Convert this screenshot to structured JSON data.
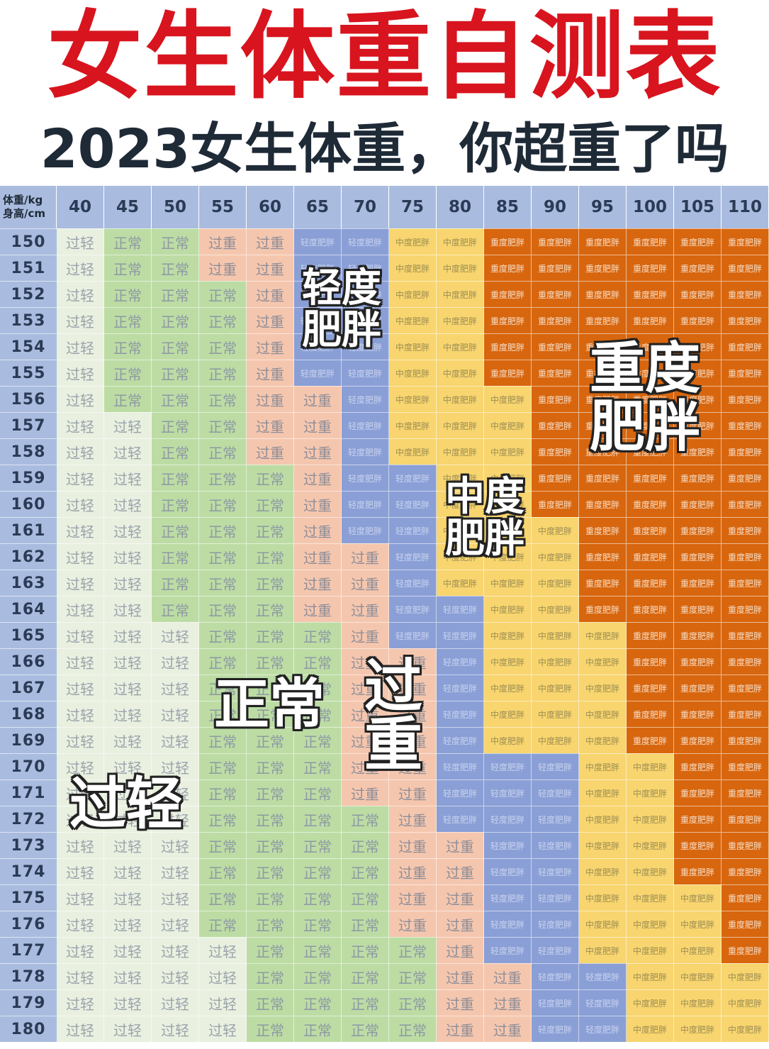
{
  "title": "女生体重自测表",
  "subtitle": "2023女生体重，你超重了吗",
  "table": {
    "corner_top": "体重/kg",
    "corner_bottom": "身高/cm",
    "weights": [
      "40",
      "45",
      "50",
      "55",
      "60",
      "65",
      "70",
      "75",
      "80",
      "85",
      "90",
      "95",
      "100",
      "105",
      "110"
    ],
    "heights": [
      "150",
      "151",
      "152",
      "153",
      "154",
      "155",
      "156",
      "157",
      "158",
      "159",
      "160",
      "161",
      "162",
      "163",
      "164",
      "165",
      "166",
      "167",
      "168",
      "169",
      "170",
      "171",
      "172",
      "173",
      "174",
      "175",
      "176",
      "177",
      "178",
      "179",
      "180"
    ],
    "categories": {
      "light": "过轻",
      "normal": "正常",
      "over": "过重",
      "mild": "轻度肥胖",
      "moderate": "中度肥胖",
      "severe": "重度肥胖"
    },
    "colors": {
      "light": "#e9f0e0",
      "normal": "#bcdca4",
      "over": "#f5c6ae",
      "mild": "#8a9fd6",
      "moderate": "#f8d56e",
      "severe": "#d8660e",
      "header": "#a9bcdf"
    },
    "grid": [
      [
        0,
        1,
        1,
        2,
        2,
        3,
        3,
        4,
        4,
        5,
        5,
        5,
        5,
        5,
        5
      ],
      [
        0,
        1,
        1,
        2,
        2,
        3,
        3,
        4,
        4,
        5,
        5,
        5,
        5,
        5,
        5
      ],
      [
        0,
        1,
        1,
        1,
        2,
        3,
        3,
        4,
        4,
        5,
        5,
        5,
        5,
        5,
        5
      ],
      [
        0,
        1,
        1,
        1,
        2,
        3,
        3,
        4,
        4,
        5,
        5,
        5,
        5,
        5,
        5
      ],
      [
        0,
        1,
        1,
        1,
        2,
        3,
        3,
        4,
        4,
        5,
        5,
        5,
        5,
        5,
        5
      ],
      [
        0,
        1,
        1,
        1,
        2,
        3,
        3,
        4,
        4,
        5,
        5,
        5,
        5,
        5,
        5
      ],
      [
        0,
        1,
        1,
        1,
        2,
        2,
        3,
        4,
        4,
        4,
        5,
        5,
        5,
        5,
        5
      ],
      [
        0,
        0,
        1,
        1,
        2,
        2,
        3,
        4,
        4,
        4,
        5,
        5,
        5,
        5,
        5
      ],
      [
        0,
        0,
        1,
        1,
        2,
        2,
        3,
        4,
        4,
        4,
        5,
        5,
        5,
        5,
        5
      ],
      [
        0,
        0,
        1,
        1,
        1,
        2,
        3,
        3,
        4,
        4,
        5,
        5,
        5,
        5,
        5
      ],
      [
        0,
        0,
        1,
        1,
        1,
        2,
        3,
        3,
        4,
        4,
        5,
        5,
        5,
        5,
        5
      ],
      [
        0,
        0,
        1,
        1,
        1,
        2,
        3,
        3,
        4,
        4,
        4,
        5,
        5,
        5,
        5
      ],
      [
        0,
        0,
        1,
        1,
        1,
        2,
        2,
        3,
        4,
        4,
        4,
        5,
        5,
        5,
        5
      ],
      [
        0,
        0,
        1,
        1,
        1,
        2,
        2,
        3,
        4,
        4,
        4,
        5,
        5,
        5,
        5
      ],
      [
        0,
        0,
        1,
        1,
        1,
        2,
        2,
        3,
        3,
        4,
        4,
        5,
        5,
        5,
        5
      ],
      [
        0,
        0,
        0,
        1,
        1,
        1,
        2,
        3,
        3,
        4,
        4,
        4,
        5,
        5,
        5
      ],
      [
        0,
        0,
        0,
        1,
        1,
        1,
        2,
        2,
        3,
        4,
        4,
        4,
        5,
        5,
        5
      ],
      [
        0,
        0,
        0,
        1,
        1,
        1,
        2,
        2,
        3,
        4,
        4,
        4,
        5,
        5,
        5
      ],
      [
        0,
        0,
        0,
        1,
        1,
        1,
        2,
        2,
        3,
        4,
        4,
        4,
        5,
        5,
        5
      ],
      [
        0,
        0,
        0,
        1,
        1,
        1,
        2,
        2,
        3,
        4,
        4,
        4,
        5,
        5,
        5
      ],
      [
        0,
        0,
        0,
        1,
        1,
        1,
        2,
        2,
        3,
        3,
        3,
        4,
        4,
        5,
        5
      ],
      [
        0,
        0,
        0,
        1,
        1,
        1,
        2,
        2,
        3,
        3,
        3,
        4,
        4,
        5,
        5
      ],
      [
        0,
        0,
        0,
        1,
        1,
        1,
        1,
        2,
        3,
        3,
        3,
        4,
        4,
        5,
        5
      ],
      [
        0,
        0,
        0,
        1,
        1,
        1,
        1,
        2,
        2,
        3,
        3,
        4,
        4,
        5,
        5
      ],
      [
        0,
        0,
        0,
        1,
        1,
        1,
        1,
        2,
        2,
        3,
        3,
        4,
        4,
        5,
        5
      ],
      [
        0,
        0,
        0,
        1,
        1,
        1,
        1,
        2,
        2,
        3,
        3,
        4,
        4,
        4,
        5
      ],
      [
        0,
        0,
        0,
        1,
        1,
        1,
        1,
        2,
        2,
        3,
        3,
        4,
        4,
        4,
        5
      ],
      [
        0,
        0,
        0,
        0,
        1,
        1,
        1,
        1,
        2,
        3,
        3,
        4,
        4,
        4,
        5
      ],
      [
        0,
        0,
        0,
        0,
        1,
        1,
        1,
        1,
        2,
        2,
        3,
        3,
        4,
        4,
        4
      ],
      [
        0,
        0,
        0,
        0,
        1,
        1,
        1,
        1,
        2,
        2,
        3,
        3,
        4,
        4,
        4
      ],
      [
        0,
        0,
        0,
        0,
        1,
        1,
        1,
        1,
        2,
        2,
        3,
        3,
        4,
        4,
        4
      ]
    ]
  },
  "zone_labels": {
    "mild": "轻度\n肥胖",
    "severe": "重度\n肥胖",
    "moderate": "中度\n肥胖",
    "normal": "正常",
    "over": "过\n重",
    "light": "过轻"
  }
}
